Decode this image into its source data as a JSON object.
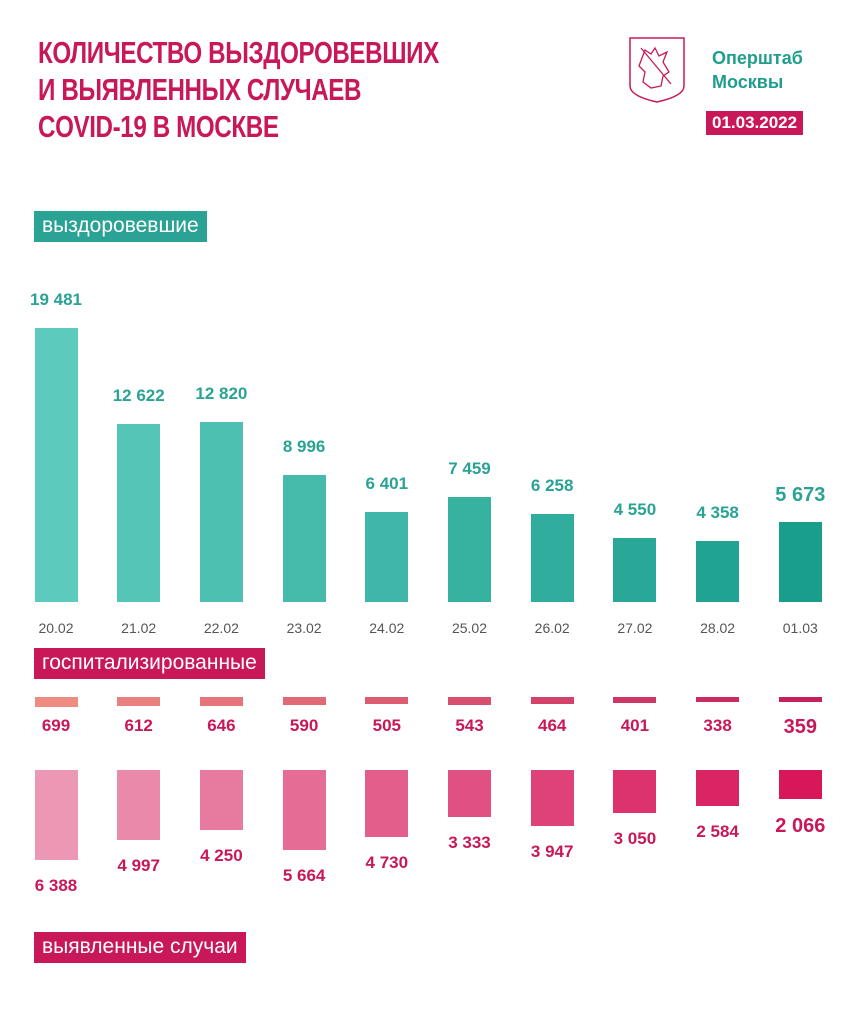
{
  "header": {
    "title_lines": [
      "КОЛИЧЕСТВО ВЫЗДОРОВЕВШИХ",
      "И ВЫЯВЛЕННЫХ СЛУЧАЕВ",
      "COVID-19 В МОСКВЕ"
    ],
    "org_lines": [
      "Оперштаб",
      "Москвы"
    ],
    "date": "01.03.2022",
    "logo": "moscow-coat-of-arms-icon"
  },
  "chart_data": {
    "type": "bar",
    "title": "КОЛИЧЕСТВО ВЫЗДОРОВЕВШИХ И ВЫЯВЛЕННЫХ СЛУЧАЕВ COVID-19 В МОСКВЕ",
    "categories": [
      "20.02",
      "21.02",
      "22.02",
      "23.02",
      "24.02",
      "25.02",
      "26.02",
      "27.02",
      "28.02",
      "01.03"
    ],
    "series": [
      {
        "name": "выздоровевшие",
        "values": [
          19481,
          12622,
          12820,
          8996,
          6401,
          7459,
          6258,
          4550,
          4358,
          5673
        ],
        "labels": [
          "19 481",
          "12 622",
          "12 820",
          "8 996",
          "6 401",
          "7 459",
          "6 258",
          "4 550",
          "4 358",
          "5 673"
        ],
        "colors": [
          "#5ccabc",
          "#1a9e8c"
        ]
      },
      {
        "name": "госпитализированные",
        "values": [
          699,
          612,
          646,
          590,
          505,
          543,
          464,
          401,
          338,
          359
        ],
        "labels": [
          "699",
          "612",
          "646",
          "590",
          "505",
          "543",
          "464",
          "401",
          "338",
          "359"
        ],
        "colors": [
          "#ef8c82",
          "#c51f5c"
        ]
      },
      {
        "name": "выявленные случаи",
        "values": [
          6388,
          4997,
          4250,
          5664,
          4730,
          3333,
          3947,
          3050,
          2584,
          2066
        ],
        "labels": [
          "6 388",
          "4 997",
          "4 250",
          "5 664",
          "4 730",
          "3 333",
          "3 947",
          "3 050",
          "2 584",
          "2 066"
        ],
        "colors": [
          "#ec97b3",
          "#d7175a"
        ]
      }
    ],
    "grid": false
  },
  "colors": {
    "title": "#c8185a",
    "teal": "#2aa394",
    "pink": "#c8185a"
  }
}
